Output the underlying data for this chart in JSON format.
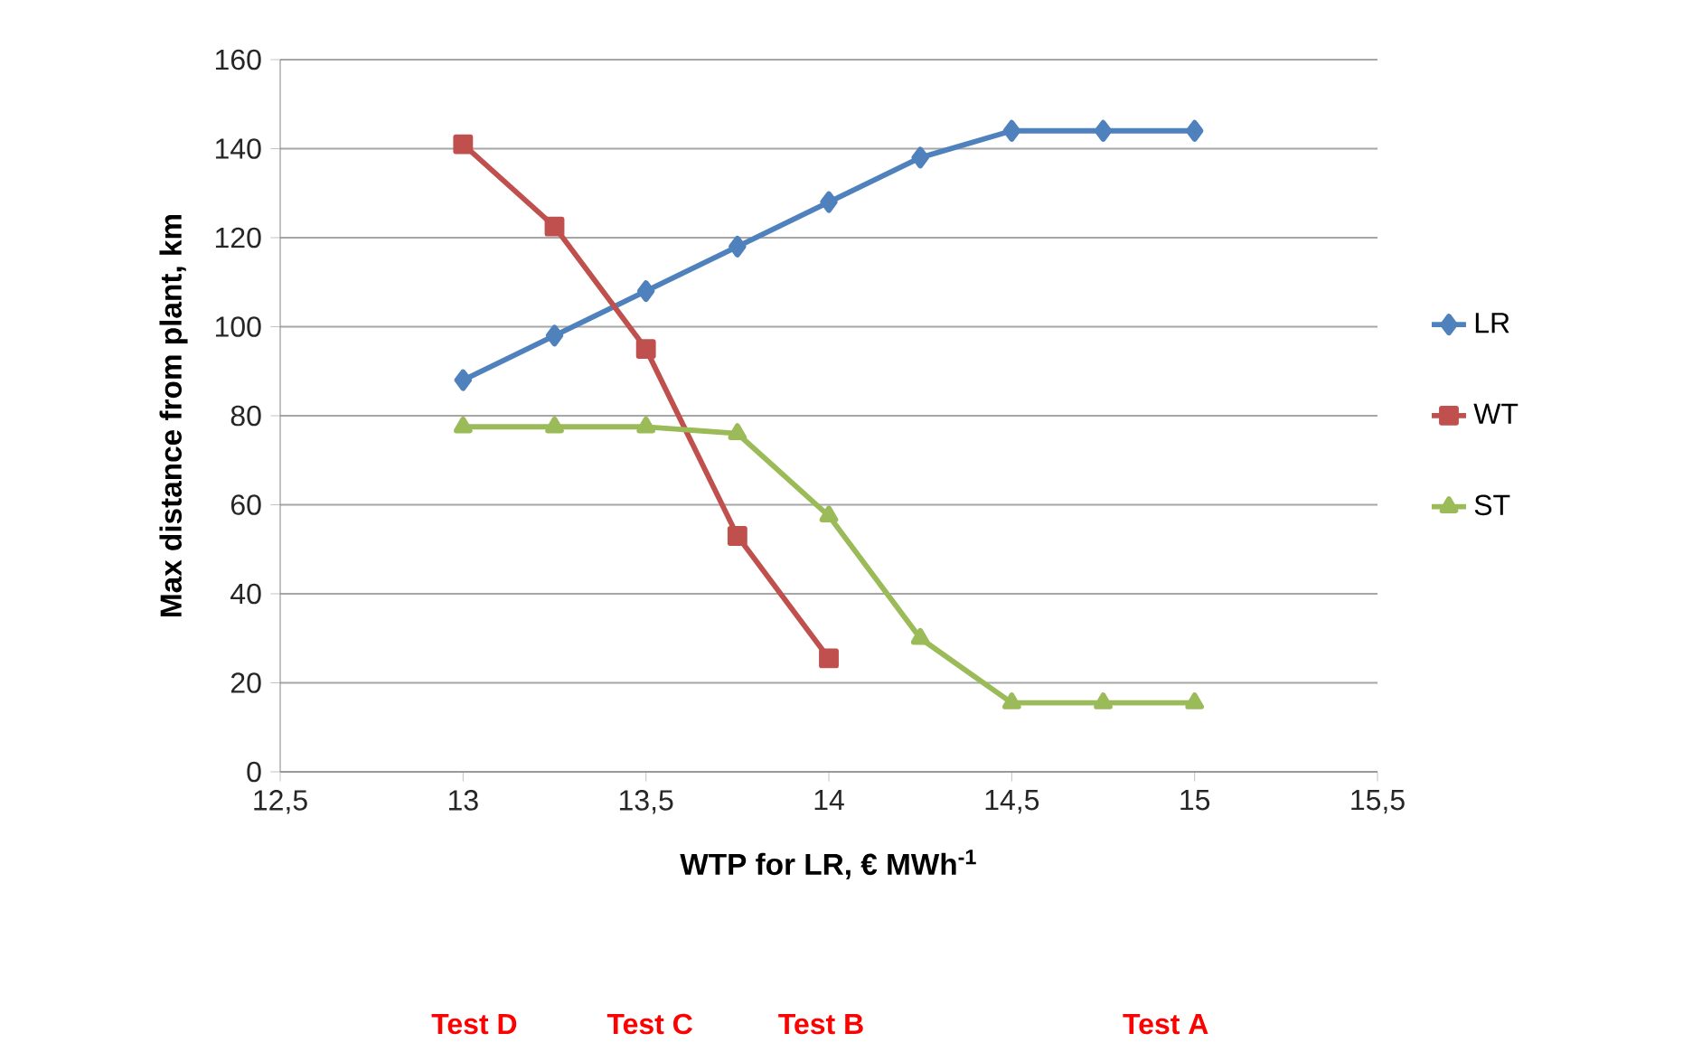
{
  "chart_data": {
    "type": "line",
    "xlabel": "WTP for LR, € MWh$^{-1}$",
    "ylabel": "Max distance from plant, km",
    "x": [
      13,
      13.25,
      13.5,
      13.75,
      14,
      14.25,
      14.5,
      14.75,
      15
    ],
    "series": [
      {
        "name": "LR",
        "color": "#4f81bd",
        "marker": "diamond",
        "values": [
          88,
          98,
          108,
          118,
          128,
          138,
          144,
          144,
          144
        ]
      },
      {
        "name": "WT",
        "color": "#c0504d",
        "marker": "square",
        "values": [
          141,
          122.5,
          95,
          53,
          25.5,
          null,
          null,
          null,
          null
        ]
      },
      {
        "name": "ST",
        "color": "#9bbb59",
        "marker": "triangle",
        "values": [
          77.5,
          77.5,
          77.5,
          76,
          57.5,
          30,
          15.5,
          15.5,
          15.5
        ]
      }
    ],
    "xlim": [
      12.5,
      15.5
    ],
    "xticks": [
      {
        "value": 12.5,
        "label": "12,5"
      },
      13,
      {
        "value": 13.5,
        "label": "13,5"
      },
      14,
      {
        "value": 14.5,
        "label": "14,5"
      },
      15,
      {
        "value": 15.5,
        "label": "15,5"
      }
    ],
    "ylim": [
      0,
      160
    ],
    "yticks": [
      0,
      20,
      40,
      60,
      80,
      100,
      120,
      140,
      160
    ],
    "grid": "y",
    "legend": "right",
    "annotations": [
      "Test D",
      "Test C",
      "Test B",
      "Test A"
    ]
  }
}
